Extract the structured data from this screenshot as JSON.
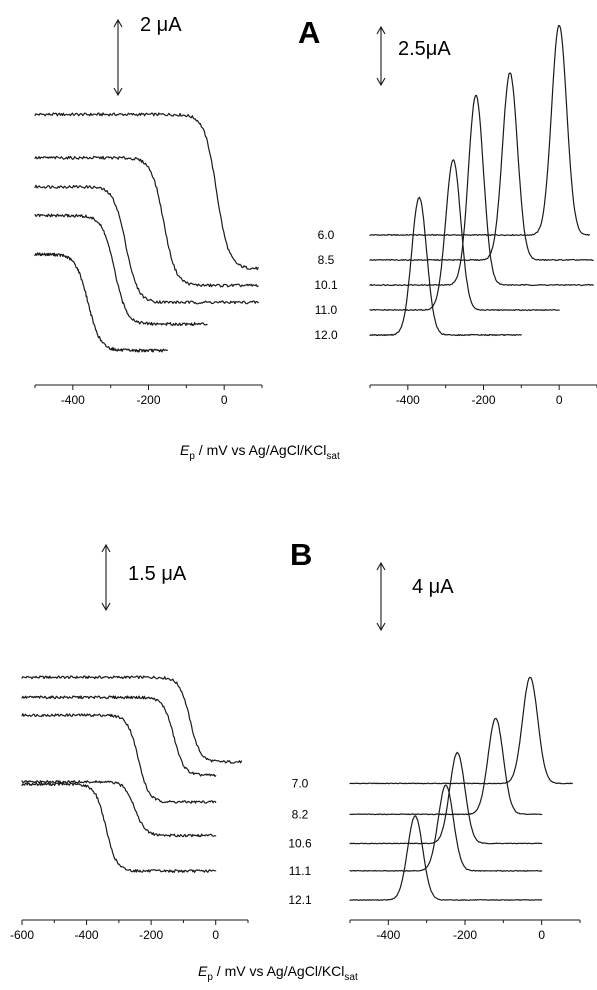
{
  "figure": {
    "x_axis_label": {
      "symbol": "E",
      "symbol_subscript": "p",
      "rest": " / mV vs Ag/AgCl/KCl",
      "rest_subscript": "sat"
    }
  },
  "chart_data": [
    {
      "id": "A-left",
      "type": "line",
      "panel_label": "",
      "scale_bar_label": "2 μA",
      "xlim": [
        -500,
        100
      ],
      "xticks": [
        -400,
        -200,
        0
      ],
      "x_tick_labels": [
        "-400",
        "-200",
        "0"
      ],
      "series": [
        {
          "step_potential": -20,
          "x_start": -500,
          "x_end": 90,
          "baseline_current": 10.4,
          "limiting_current": 4.0
        },
        {
          "step_potential": -160,
          "x_start": -500,
          "x_end": 90,
          "baseline_current": 8.6,
          "limiting_current": 3.3
        },
        {
          "step_potential": -260,
          "x_start": -500,
          "x_end": 90,
          "baseline_current": 7.4,
          "limiting_current": 2.6
        },
        {
          "step_potential": -290,
          "x_start": -500,
          "x_end": -45,
          "baseline_current": 6.2,
          "limiting_current": 1.7
        },
        {
          "step_potential": -360,
          "x_start": -500,
          "x_end": -150,
          "baseline_current": 4.6,
          "limiting_current": 0.6
        }
      ]
    },
    {
      "id": "A-right",
      "type": "line",
      "panel_label": "A",
      "scale_bar_label": "2.5μA",
      "xlim": [
        -500,
        100
      ],
      "xticks": [
        -400,
        -200,
        0
      ],
      "x_tick_labels": [
        "-400",
        "-200",
        "0"
      ],
      "series": [
        {
          "name": "6.0",
          "peak_potential": 0,
          "x_start": -500,
          "x_end": 80,
          "baseline_current": 5.2,
          "peak_current": 13.6
        },
        {
          "name": "8.5",
          "peak_potential": -130,
          "x_start": -500,
          "x_end": 90,
          "baseline_current": 4.2,
          "peak_current": 11.7
        },
        {
          "name": "10.1",
          "peak_potential": -220,
          "x_start": -500,
          "x_end": 90,
          "baseline_current": 3.2,
          "peak_current": 10.8
        },
        {
          "name": "11.0",
          "peak_potential": -280,
          "x_start": -500,
          "x_end": 0,
          "baseline_current": 2.2,
          "peak_current": 8.2
        },
        {
          "name": "12.0",
          "peak_potential": -370,
          "x_start": -500,
          "x_end": -100,
          "baseline_current": 1.2,
          "peak_current": 6.7
        }
      ]
    },
    {
      "id": "B-left",
      "type": "line",
      "panel_label": "",
      "scale_bar_label": "1.5 μA",
      "xlim": [
        -600,
        100
      ],
      "xticks": [
        -600,
        -400,
        -200,
        0
      ],
      "x_tick_labels": [
        "-600",
        "-400",
        "-200",
        "0"
      ],
      "series": [
        {
          "step_potential": -80,
          "x_start": -600,
          "x_end": 80,
          "baseline_current": 10.0,
          "limiting_current": 6.2
        },
        {
          "step_potential": -130,
          "x_start": -600,
          "x_end": 0,
          "baseline_current": 9.1,
          "limiting_current": 5.6
        },
        {
          "step_potential": -240,
          "x_start": -600,
          "x_end": 0,
          "baseline_current": 8.3,
          "limiting_current": 4.4
        },
        {
          "step_potential": -250,
          "x_start": -600,
          "x_end": 0,
          "baseline_current": 5.3,
          "limiting_current": 2.9
        },
        {
          "step_potential": -340,
          "x_start": -600,
          "x_end": 0,
          "baseline_current": 5.2,
          "limiting_current": 1.3
        }
      ]
    },
    {
      "id": "B-right",
      "type": "line",
      "panel_label": "B",
      "scale_bar_label": "4 μA",
      "xlim": [
        -500,
        100
      ],
      "xticks": [
        -400,
        -200,
        0
      ],
      "x_tick_labels": [
        "-400",
        "-200",
        "0"
      ],
      "series": [
        {
          "name": "7.0",
          "peak_potential": -30,
          "x_start": -500,
          "x_end": 80,
          "baseline_current": 6.8,
          "peak_current": 13.0
        },
        {
          "name": "8.2",
          "peak_potential": -120,
          "x_start": -500,
          "x_end": 0,
          "baseline_current": 5.0,
          "peak_current": 10.6
        },
        {
          "name": "10.6",
          "peak_potential": -220,
          "x_start": -500,
          "x_end": 0,
          "baseline_current": 3.3,
          "peak_current": 8.6
        },
        {
          "name": "11.1",
          "peak_potential": -250,
          "x_start": -500,
          "x_end": 0,
          "baseline_current": 1.7,
          "peak_current": 6.7
        },
        {
          "name": "12.1",
          "peak_potential": -330,
          "x_start": -500,
          "x_end": 0,
          "baseline_current": 0.0,
          "peak_current": 4.9
        }
      ]
    }
  ]
}
